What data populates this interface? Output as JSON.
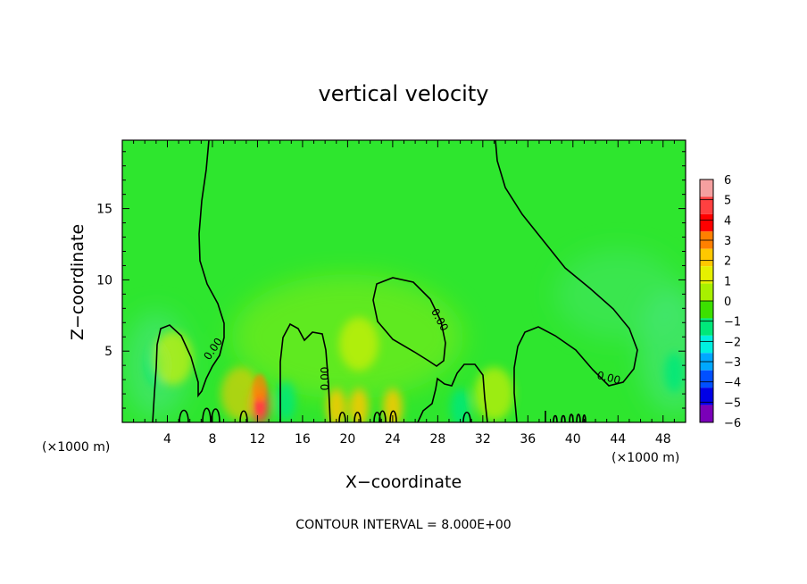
{
  "chart_data": {
    "type": "heatmap",
    "title": "vertical velocity",
    "xlabel": "X−coordinate",
    "ylabel": "Z−coordinate",
    "x_unit_left": "(×1000 m)",
    "x_unit_right": "(×1000 m)",
    "xlim": [
      0,
      50
    ],
    "ylim": [
      0,
      19.8
    ],
    "x_ticks": [
      4,
      8,
      12,
      16,
      20,
      24,
      28,
      32,
      36,
      40,
      44,
      48
    ],
    "y_ticks": [
      5,
      10,
      15
    ],
    "contour_interval_text": "CONTOUR INTERVAL = 8.000E+00",
    "contour_level_label": "0.00",
    "colorbar": {
      "levels": [
        6,
        5,
        4,
        3,
        2,
        1,
        0,
        -1,
        -2,
        -3,
        -4,
        -5,
        -6
      ],
      "labels": [
        "6",
        "5",
        "4",
        "3",
        "2",
        "1",
        "0",
        "−1",
        "−2",
        "−3",
        "−4",
        "−5",
        "−6"
      ],
      "colors": [
        "#f5a0a0",
        "#ff4040",
        "#ff0000",
        "#ff8000",
        "#ffc800",
        "#e6f000",
        "#a8f000",
        "#3ce000",
        "#00e87a",
        "#00f0e0",
        "#00a8ff",
        "#0050ff",
        "#0000e6",
        "#7a00b8"
      ]
    },
    "background_color": "#2ee62e",
    "anomalies": [
      {
        "x": 12.2,
        "z": 1.2,
        "value": 4.5
      },
      {
        "x": 3.0,
        "z": 4.0,
        "value": -2
      },
      {
        "x": 49.0,
        "z": 3.5,
        "value": -2
      },
      {
        "x": 14.5,
        "z": 1.5,
        "value": -2
      },
      {
        "x": 30.0,
        "z": 1.0,
        "value": -2
      },
      {
        "x": 4.5,
        "z": 4.5,
        "value": 1
      },
      {
        "x": 21.0,
        "z": 5.5,
        "value": 0.7
      },
      {
        "x": 19.0,
        "z": 1.0,
        "value": 2
      },
      {
        "x": 21.0,
        "z": 1.0,
        "value": 2
      },
      {
        "x": 24.0,
        "z": 1.0,
        "value": 2
      },
      {
        "x": 10.5,
        "z": 2.0,
        "value": 1.5
      },
      {
        "x": 33.0,
        "z": 2.0,
        "value": 1
      }
    ]
  }
}
